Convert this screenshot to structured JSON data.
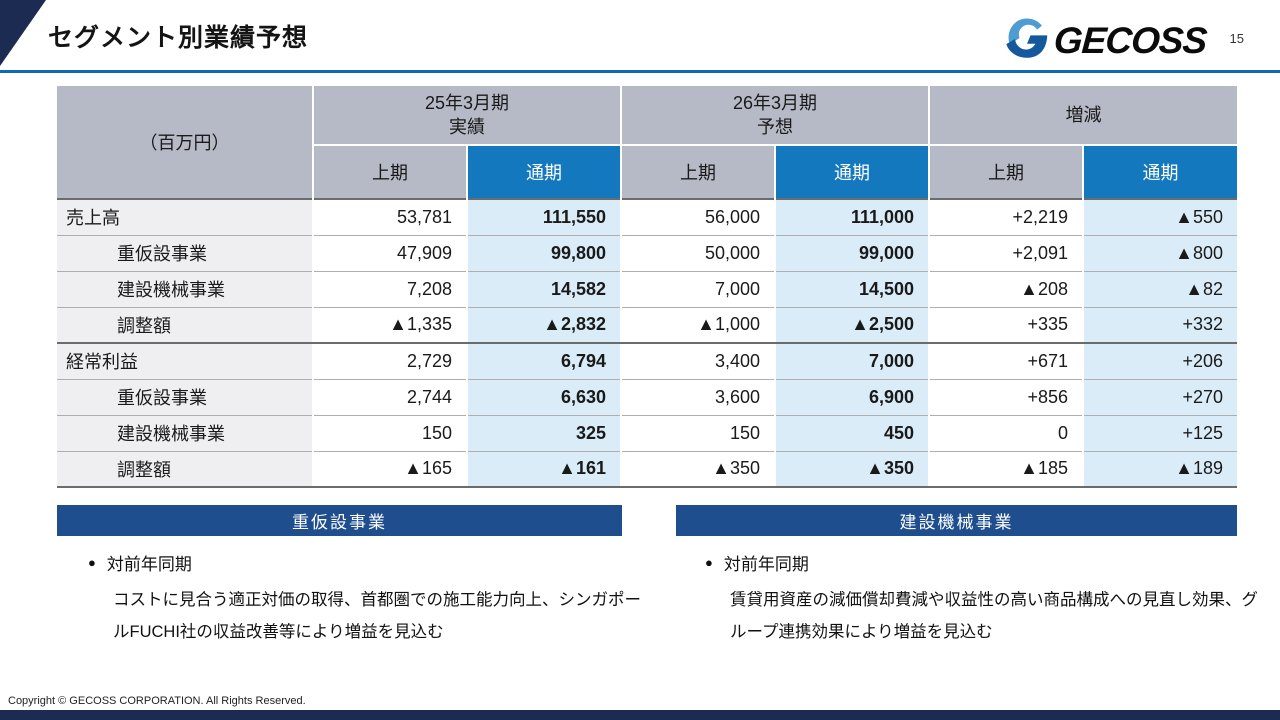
{
  "page": {
    "title": "セグメント別業績予想",
    "page_number": "15",
    "logo_text": "GECOSS",
    "copyright": "Copyright © GECOSS CORPORATION. All Rights Reserved."
  },
  "colors": {
    "accent_blue": "#1068b8",
    "header_gray": "#b6bac7",
    "zenki_blue": "#1478bf",
    "zenki_light": "#daecf8",
    "banner_navy": "#1f4e8f",
    "corner_navy": "#1c2b52"
  },
  "table": {
    "unit_label": "（百万円）",
    "col_groups": [
      {
        "label": "25年3月期\n実績"
      },
      {
        "label": "26年3月期\n予想"
      },
      {
        "label": "増減"
      }
    ],
    "sub_headers": [
      "上期",
      "通期",
      "上期",
      "通期",
      "上期",
      "通期"
    ],
    "rows": [
      {
        "label": "売上高",
        "indent": false,
        "group_end": false,
        "values": [
          "53,781",
          "111,550",
          "56,000",
          "111,000",
          "+2,219",
          "▲550"
        ]
      },
      {
        "label": "重仮設事業",
        "indent": true,
        "group_end": false,
        "values": [
          "47,909",
          "99,800",
          "50,000",
          "99,000",
          "+2,091",
          "▲800"
        ]
      },
      {
        "label": "建設機械事業",
        "indent": true,
        "group_end": false,
        "values": [
          "7,208",
          "14,582",
          "7,000",
          "14,500",
          "▲208",
          "▲82"
        ]
      },
      {
        "label": "調整額",
        "indent": true,
        "group_end": true,
        "values": [
          "▲1,335",
          "▲2,832",
          "▲1,000",
          "▲2,500",
          "+335",
          "+332"
        ]
      },
      {
        "label": "経常利益",
        "indent": false,
        "group_end": false,
        "values": [
          "2,729",
          "6,794",
          "3,400",
          "7,000",
          "+671",
          "+206"
        ]
      },
      {
        "label": "重仮設事業",
        "indent": true,
        "group_end": false,
        "values": [
          "2,744",
          "6,630",
          "3,600",
          "6,900",
          "+856",
          "+270"
        ]
      },
      {
        "label": "建設機械事業",
        "indent": true,
        "group_end": false,
        "values": [
          "150",
          "325",
          "150",
          "450",
          "0",
          "+125"
        ]
      },
      {
        "label": "調整額",
        "indent": true,
        "group_end": true,
        "values": [
          "▲165",
          "▲161",
          "▲350",
          "▲350",
          "▲185",
          "▲189"
        ]
      }
    ]
  },
  "sections": [
    {
      "banner": "重仮設事業",
      "bullet": "対前年同期",
      "body": "コストに見合う適正対価の取得、首都圏での施工能力向上、シンガポールFUCHI社の収益改善等により増益を見込む"
    },
    {
      "banner": "建設機械事業",
      "bullet": "対前年同期",
      "body": "賃貸用資産の減価償却費減や収益性の高い商品構成への見直し効果、グループ連携効果により増益を見込む"
    }
  ]
}
